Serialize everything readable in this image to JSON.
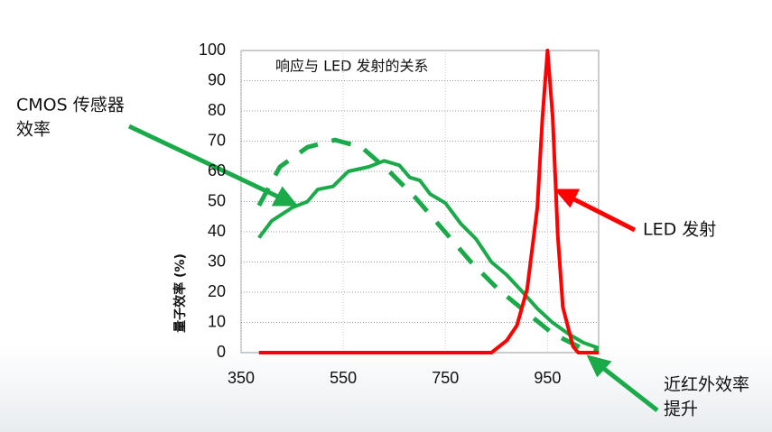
{
  "chart_data": {
    "type": "line",
    "title": "响应与 LED 发射的关系",
    "y_label": "量子效率 (%)",
    "xlim": [
      350,
      1050
    ],
    "xticks": [
      350,
      550,
      750,
      950
    ],
    "ylim": [
      0,
      100
    ],
    "yticks": [
      0,
      10,
      20,
      30,
      40,
      50,
      60,
      70,
      80,
      90,
      100
    ],
    "grid": true,
    "series": [
      {
        "color": "#1aaa4a",
        "style": "solid",
        "x": [
          385,
          410,
          450,
          480,
          500,
          530,
          560,
          600,
          630,
          660,
          680,
          700,
          720,
          750,
          780,
          810,
          840,
          870,
          900,
          930,
          960,
          990,
          1020,
          1050
        ],
        "values": [
          38,
          43.6,
          48,
          50,
          54,
          55,
          60,
          61.5,
          63.5,
          62,
          58,
          57,
          52.5,
          49.5,
          42.7,
          37.6,
          30,
          25.7,
          20.3,
          14.6,
          9.9,
          6.3,
          3.3,
          1.5
        ]
      },
      {
        "color": "#1aaa4a",
        "style": "dashed",
        "x": [
          385,
          426,
          480,
          534,
          586,
          640,
          693,
          746,
          800,
          853,
          906,
          960,
          1013,
          1049
        ],
        "values": [
          48.7,
          61.5,
          68,
          70.4,
          68,
          60,
          51,
          40.6,
          30,
          21,
          13.7,
          6.3,
          1.8,
          0.3
        ]
      },
      {
        "color": "#ff0000",
        "style": "solid",
        "x": [
          385,
          600,
          840,
          870,
          890,
          910,
          930,
          940,
          950,
          960,
          970,
          980,
          1000,
          1010,
          1050
        ],
        "values": [
          0,
          0,
          0,
          4,
          9,
          21,
          48,
          78,
          100,
          78,
          39,
          15,
          2,
          0,
          0
        ]
      }
    ],
    "annotations": [
      {
        "text": [
          "CMOS 传感器",
          "效率"
        ]
      },
      {
        "text": [
          "LED 发射"
        ]
      },
      {
        "text": [
          "近红外效率",
          "提升"
        ]
      }
    ]
  }
}
